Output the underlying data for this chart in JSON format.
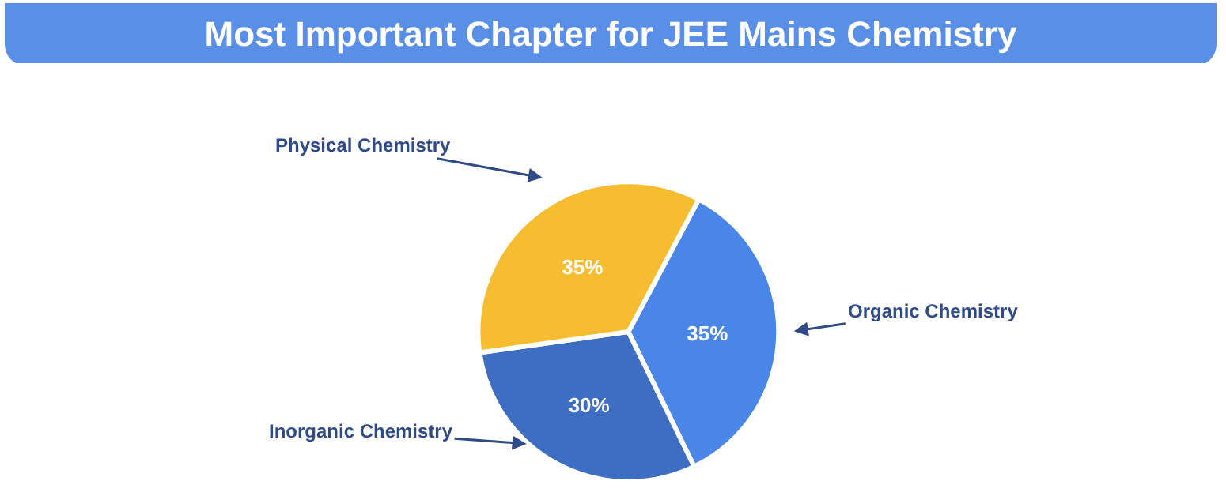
{
  "chart_data": {
    "type": "pie",
    "title": "Most Important Chapter for JEE Mains Chemistry",
    "categories": [
      "Organic Chemistry",
      "Inorganic Chemistry",
      "Physical Chemistry"
    ],
    "values": [
      35,
      30,
      35
    ],
    "colors": [
      "#4a86e8",
      "#3d6ec4",
      "#f7bd31"
    ],
    "value_labels": [
      "35%",
      "30%",
      "35%"
    ],
    "legend": false
  }
}
